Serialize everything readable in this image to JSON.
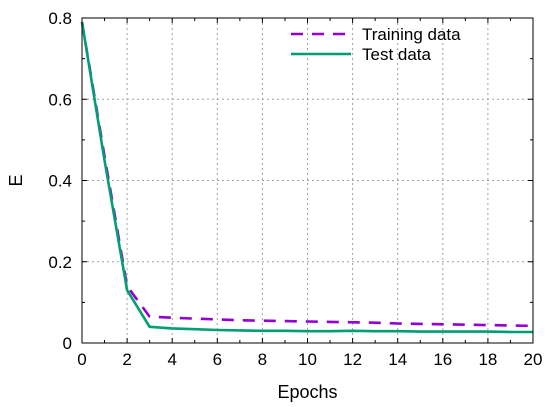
{
  "chart_data": {
    "type": "line",
    "xlabel": "Epochs",
    "ylabel": "E",
    "xlim": [
      0,
      20
    ],
    "ylim": [
      0,
      0.8
    ],
    "xticks": [
      0,
      2,
      4,
      6,
      8,
      10,
      12,
      14,
      16,
      18,
      20
    ],
    "xtick_labels": [
      "0",
      "2",
      "4",
      "6",
      "8",
      "10",
      "12",
      "14",
      "16",
      "18",
      "20"
    ],
    "yticks": [
      0,
      0.2,
      0.4,
      0.6,
      0.8
    ],
    "ytick_labels": [
      "0",
      "0.2",
      "0.4",
      "0.6",
      "0.8"
    ],
    "grid": true,
    "legend_position": "top-right",
    "series": [
      {
        "name": "Training data",
        "color": "#9400d3",
        "style": "dashed",
        "x": [
          0,
          1,
          2,
          3,
          4,
          5,
          6,
          7,
          8,
          9,
          10,
          11,
          12,
          13,
          14,
          15,
          16,
          17,
          18,
          19,
          20
        ],
        "y": [
          0.79,
          0.46,
          0.14,
          0.065,
          0.062,
          0.06,
          0.058,
          0.056,
          0.055,
          0.054,
          0.053,
          0.052,
          0.051,
          0.05,
          0.048,
          0.047,
          0.046,
          0.045,
          0.044,
          0.043,
          0.042
        ]
      },
      {
        "name": "Test data",
        "color": "#009e73",
        "style": "solid",
        "x": [
          0,
          1,
          2,
          3,
          4,
          5,
          6,
          7,
          8,
          9,
          10,
          11,
          12,
          13,
          14,
          15,
          16,
          17,
          18,
          19,
          20
        ],
        "y": [
          0.79,
          0.45,
          0.13,
          0.04,
          0.036,
          0.034,
          0.032,
          0.031,
          0.03,
          0.03,
          0.029,
          0.029,
          0.03,
          0.029,
          0.029,
          0.028,
          0.028,
          0.028,
          0.028,
          0.027,
          0.027
        ]
      }
    ]
  }
}
